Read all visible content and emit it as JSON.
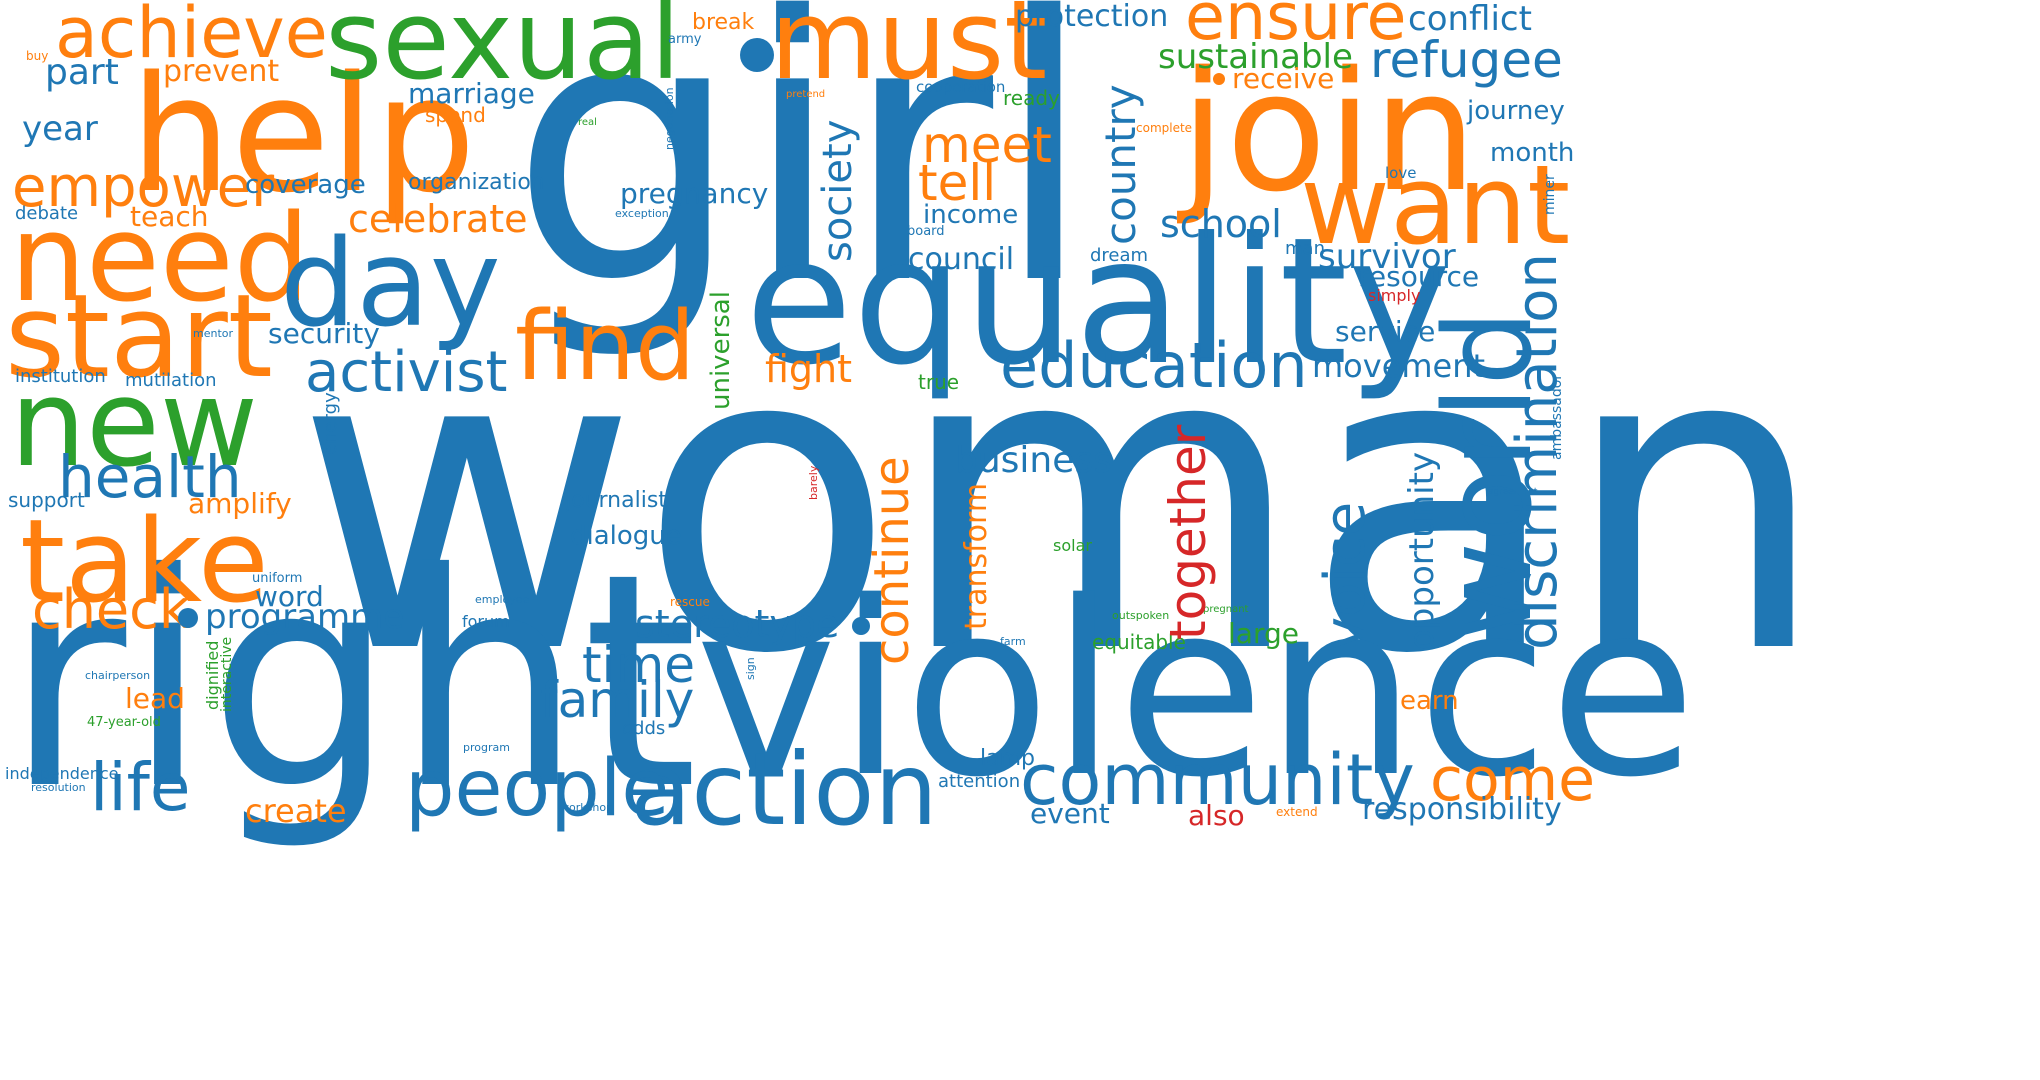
{
  "colors": {
    "blue": "#1f77b4",
    "orange": "#ff7f0e",
    "green": "#2ca02c",
    "red": "#d62728",
    "background": "#ffffff"
  },
  "words": {
    "woman": "woman",
    "girl": "girl",
    "right": "right",
    "violence": "violence",
    "equality": "equality",
    "help": "help",
    "join": "join",
    "sexual": "sexual",
    "must": "must",
    "need": "need",
    "start": "start",
    "want": "want",
    "new": "new",
    "take": "take",
    "day": "day",
    "find": "find",
    "world": "world",
    "action": "action",
    "people": "people",
    "community": "community",
    "discrimination": "discrimination",
    "achieve": "achieve",
    "ensure": "ensure",
    "empower": "empower",
    "education": "education",
    "activist": "activist",
    "voice": "voice",
    "continue": "continue",
    "together": "together",
    "life": "life",
    "health": "health",
    "check": "check",
    "come": "come",
    "country": "country",
    "society": "society",
    "refugee": "refugee",
    "meet": "meet",
    "tell": "tell",
    "time": "time",
    "family": "family",
    "celebrate": "celebrate",
    "stereotype": "stereotype",
    "programme": "programme",
    "business": "business",
    "school": "school",
    "survivor": "survivor",
    "movement": "movement",
    "opportunity": "opportunity",
    "conflict": "conflict",
    "sustainable": "sustainable",
    "protection": "protection",
    "part": "part",
    "prevent": "prevent",
    "year": "year",
    "marriage": "marriage",
    "pregnancy": "pregnancy",
    "council": "council",
    "security": "security",
    "fight": "fight",
    "responsibility": "responsibility",
    "transform": "transform",
    "universal": "universal",
    "resource": "resource",
    "service": "service",
    "amplify": "amplify",
    "teach": "teach",
    "coverage": "coverage",
    "income": "income",
    "create": "create",
    "word": "word",
    "lead": "lead",
    "event": "event",
    "large": "large",
    "receive": "receive",
    "organization": "organization",
    "month": "month",
    "journey": "journey",
    "also": "also",
    "earn": "earn",
    "dialogue": "dialogue",
    "journalist": "journalist",
    "break": "break",
    "spend": "spend",
    "ready": "ready",
    "equitable": "equitable",
    "lamp": "lamp",
    "support": "support",
    "debate": "debate",
    "institution": "institution",
    "mutilation": "mutilation",
    "true": "true",
    "energy": "energy",
    "forum": "forum",
    "attention": "attention",
    "odds": "odds",
    "solar": "solar",
    "independence": "independence",
    "dignified": "dignified",
    "interactive": "interactive",
    "dream": "dream",
    "man": "man",
    "simply": "simply",
    "love": "love",
    "cooperation": "cooperation",
    "miner": "miner",
    "ambassador": "ambassador",
    "army": "army",
    "buy": "buy",
    "uniform": "uniform",
    "47-year-old": "47-year-old",
    "resolution": "resolution",
    "workshop": "workshop",
    "program": "program",
    "chairperson": "chairperson",
    "mentor": "mentor",
    "exception": "exception",
    "board": "board",
    "negotiation": "negotiation",
    "real": "real",
    "pretend": "pretend",
    "complete": "complete",
    "rescue": "rescue",
    "employee": "employee",
    "sign": "sign",
    "farm": "farm",
    "extend": "extend",
    "outspoken": "outspoken",
    "pregnant": "pregnant",
    "agreement": "agreement",
    "barely": "barely"
  }
}
